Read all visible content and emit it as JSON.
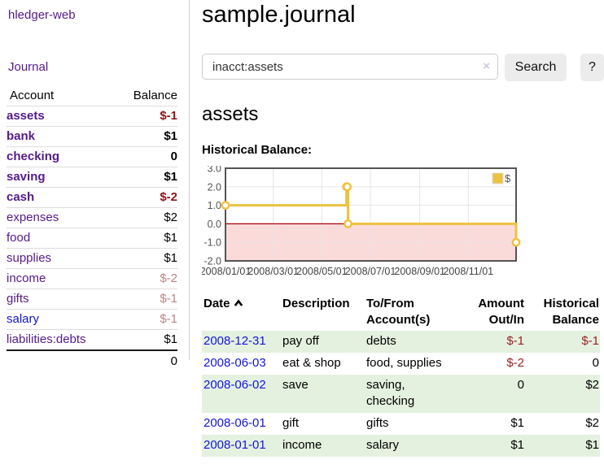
{
  "sidebar": {
    "app_title": "hledger-web",
    "journal_link": "Journal",
    "accounts_table": {
      "account_header": "Account",
      "balance_header": "Balance",
      "rows": [
        {
          "label": "assets",
          "depth": 1,
          "bold": true,
          "balance": "$-1",
          "balance_style": "neg-strong",
          "link_style": "purple"
        },
        {
          "label": "bank",
          "depth": 2,
          "bold": true,
          "balance": "$1",
          "balance_style": "",
          "link_style": "purple"
        },
        {
          "label": "checking",
          "depth": 3,
          "bold": true,
          "balance": "0",
          "balance_style": "",
          "link_style": "purple"
        },
        {
          "label": "saving",
          "depth": 3,
          "bold": true,
          "balance": "$1",
          "balance_style": "",
          "link_style": "purple"
        },
        {
          "label": "cash",
          "depth": 2,
          "bold": true,
          "balance": "$-2",
          "balance_style": "neg-strong",
          "link_style": "purple"
        },
        {
          "label": "expenses",
          "depth": 1,
          "bold": false,
          "balance": "$2",
          "balance_style": "",
          "link_style": "purple"
        },
        {
          "label": "food",
          "depth": 2,
          "bold": false,
          "balance": "$1",
          "balance_style": "",
          "link_style": "purple"
        },
        {
          "label": "supplies",
          "depth": 2,
          "bold": false,
          "balance": "$1",
          "balance_style": "",
          "link_style": "purple"
        },
        {
          "label": "income",
          "depth": 1,
          "bold": false,
          "balance": "$-2",
          "balance_style": "neg-soft",
          "link_style": "purple"
        },
        {
          "label": "gifts",
          "depth": 2,
          "bold": false,
          "balance": "$-1",
          "balance_style": "neg-soft",
          "link_style": "purple"
        },
        {
          "label": "salary",
          "depth": 2,
          "bold": false,
          "balance": "$-1",
          "balance_style": "neg-soft",
          "link_style": "blue"
        },
        {
          "label": "liabilities:debts",
          "depth": 1,
          "bold": false,
          "balance": "$1",
          "balance_style": "",
          "link_style": "purple"
        }
      ],
      "total": "0"
    }
  },
  "main": {
    "title": "sample.journal",
    "search": {
      "value": "inacct:assets",
      "clear_icon": "×",
      "button_label": "Search",
      "help_label": "?"
    },
    "account_heading": "assets",
    "chart_label": "Historical Balance:",
    "transactions": {
      "headers": {
        "date": "Date",
        "description": "Description",
        "accounts": "To/From Account(s)",
        "amount": "Amount Out/In",
        "balance": "Historical Balance"
      },
      "sort": "ascending",
      "rows": [
        {
          "date": "2008-12-31",
          "description": "pay off",
          "accounts": "debts",
          "amount": "$-1",
          "amount_negative": true,
          "balance": "$-1",
          "balance_negative": true
        },
        {
          "date": "2008-06-03",
          "description": "eat & shop",
          "accounts": "food, supplies",
          "amount": "$-2",
          "amount_negative": true,
          "balance": "0",
          "balance_negative": false
        },
        {
          "date": "2008-06-02",
          "description": "save",
          "accounts": "saving, checking",
          "amount": "0",
          "amount_negative": false,
          "balance": "$2",
          "balance_negative": false
        },
        {
          "date": "2008-06-01",
          "description": "gift",
          "accounts": "gifts",
          "amount": "$1",
          "amount_negative": false,
          "balance": "$2",
          "balance_negative": false
        },
        {
          "date": "2008-01-01",
          "description": "income",
          "accounts": "salary",
          "amount": "$1",
          "amount_negative": false,
          "balance": "$1",
          "balance_negative": false
        }
      ]
    }
  },
  "chart_data": {
    "type": "line",
    "step": true,
    "title": "Historical Balance",
    "series": [
      {
        "name": "$",
        "points": [
          [
            "2008-01-01",
            1
          ],
          [
            "2008-06-01",
            2
          ],
          [
            "2008-06-02",
            2
          ],
          [
            "2008-06-03",
            0
          ],
          [
            "2008-12-31",
            -1
          ]
        ]
      }
    ],
    "y_ticks": [
      "3.0",
      "2.0",
      "1.0",
      "0.0",
      "-1.0",
      "-2.0"
    ],
    "y_tick_values": [
      3,
      2,
      1,
      0,
      -1,
      -2
    ],
    "x_tick_labels": [
      "2008/01/01",
      "2008/03/01",
      "2008/05/01",
      "2008/07/01",
      "2008/09/01",
      "2008/11/01"
    ],
    "x_tick_dates": [
      "2008-01-01",
      "2008-03-01",
      "2008-05-01",
      "2008-07-01",
      "2008-09-01",
      "2008-11-01"
    ],
    "ylim": [
      -2,
      3
    ],
    "xlim": [
      "2008-01-01",
      "2008-12-31"
    ],
    "grid": true,
    "legend": {
      "label": "$",
      "position": "top-right"
    }
  },
  "colors": {
    "link_purple": "#551a8b",
    "link_blue": "#1414cc",
    "negative_strong": "#8b1414",
    "negative_soft": "#c08484",
    "negative_table": "#9c1f1f",
    "row_stripe_green": "#e4f1df",
    "chart_line": "#edc240",
    "chart_negative_fill": "#fbdada",
    "chart_zero_line": "#a40000",
    "chart_border": "#545454",
    "chart_grid": "#e6e6e6",
    "chart_tick_text": "#545454"
  }
}
